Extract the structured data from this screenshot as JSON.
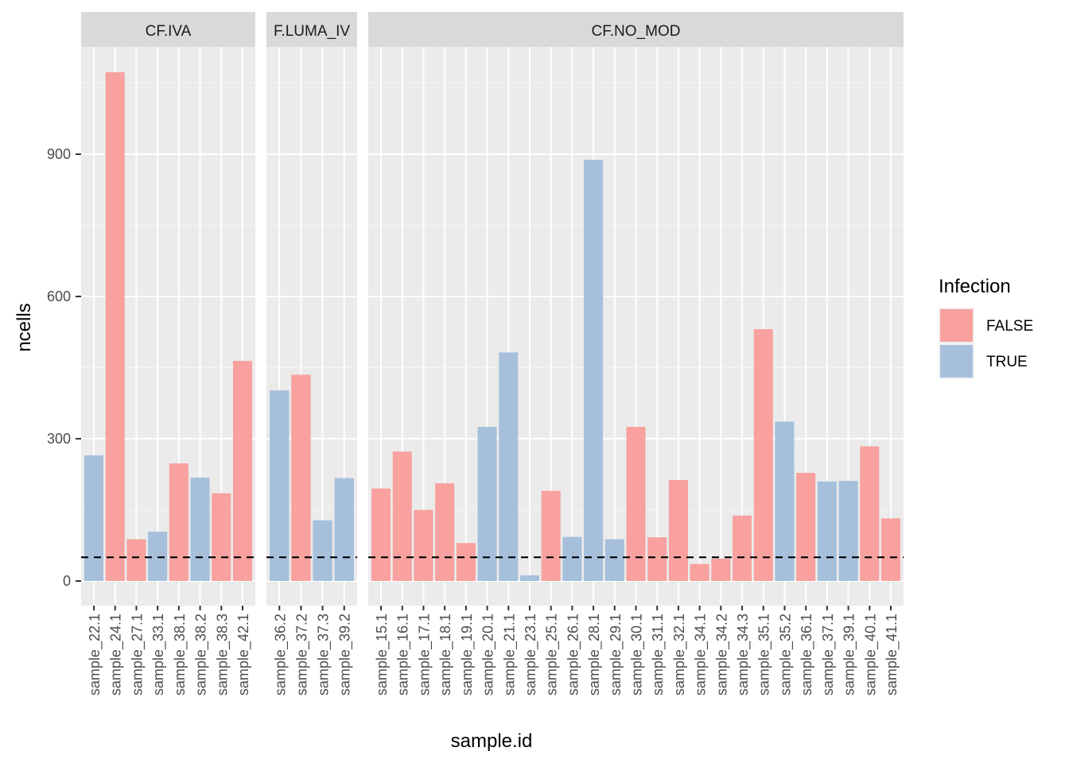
{
  "chart_data": {
    "type": "bar",
    "ylabel": "ncells",
    "xlabel": "sample.id",
    "ylim": [
      -55,
      1150
    ],
    "yticks": [
      0,
      300,
      600,
      900
    ],
    "threshold": 50,
    "legend": {
      "title": "Infection",
      "position": "right",
      "entries": [
        {
          "label": "FALSE",
          "color": "#F8A19F"
        },
        {
          "label": "TRUE",
          "color": "#A6C0DC"
        }
      ]
    },
    "colors": {
      "FALSE": "#F8A19F",
      "TRUE": "#A6C0DC"
    },
    "grid": true,
    "facets": [
      {
        "label": "CF.IVA",
        "categories": [
          "sample_22.1",
          "sample_24.1",
          "sample_27.1",
          "sample_33.1",
          "sample_38.1",
          "sample_38.2",
          "sample_38.3",
          "sample_42.1"
        ],
        "values": [
          265,
          1073,
          88,
          104,
          248,
          218,
          185,
          464
        ],
        "infection": [
          "TRUE",
          "FALSE",
          "FALSE",
          "TRUE",
          "FALSE",
          "TRUE",
          "FALSE",
          "FALSE"
        ]
      },
      {
        "label": "F.LUMA_IV",
        "categories": [
          "sample_36.2",
          "sample_37.2",
          "sample_37.3",
          "sample_39.2"
        ],
        "values": [
          402,
          435,
          128,
          217
        ],
        "infection": [
          "TRUE",
          "FALSE",
          "TRUE",
          "TRUE"
        ]
      },
      {
        "label": "CF.NO_MOD",
        "categories": [
          "sample_15.1",
          "sample_16.1",
          "sample_17.1",
          "sample_18.1",
          "sample_19.1",
          "sample_20.1",
          "sample_21.1",
          "sample_23.1",
          "sample_25.1",
          "sample_26.1",
          "sample_28.1",
          "sample_29.1",
          "sample_30.1",
          "sample_31.1",
          "sample_32.1",
          "sample_34.1",
          "sample_34.2",
          "sample_34.3",
          "sample_35.1",
          "sample_35.2",
          "sample_36.1",
          "sample_37.1",
          "sample_39.1",
          "sample_40.1",
          "sample_41.1"
        ],
        "values": [
          195,
          273,
          150,
          206,
          80,
          325,
          482,
          12,
          190,
          93,
          888,
          88,
          325,
          92,
          213,
          36,
          47,
          138,
          531,
          336,
          228,
          210,
          211,
          284,
          132
        ],
        "infection": [
          "FALSE",
          "FALSE",
          "FALSE",
          "FALSE",
          "FALSE",
          "TRUE",
          "TRUE",
          "TRUE",
          "FALSE",
          "TRUE",
          "TRUE",
          "TRUE",
          "FALSE",
          "FALSE",
          "FALSE",
          "FALSE",
          "FALSE",
          "FALSE",
          "FALSE",
          "TRUE",
          "FALSE",
          "TRUE",
          "TRUE",
          "FALSE",
          "FALSE"
        ]
      }
    ]
  }
}
